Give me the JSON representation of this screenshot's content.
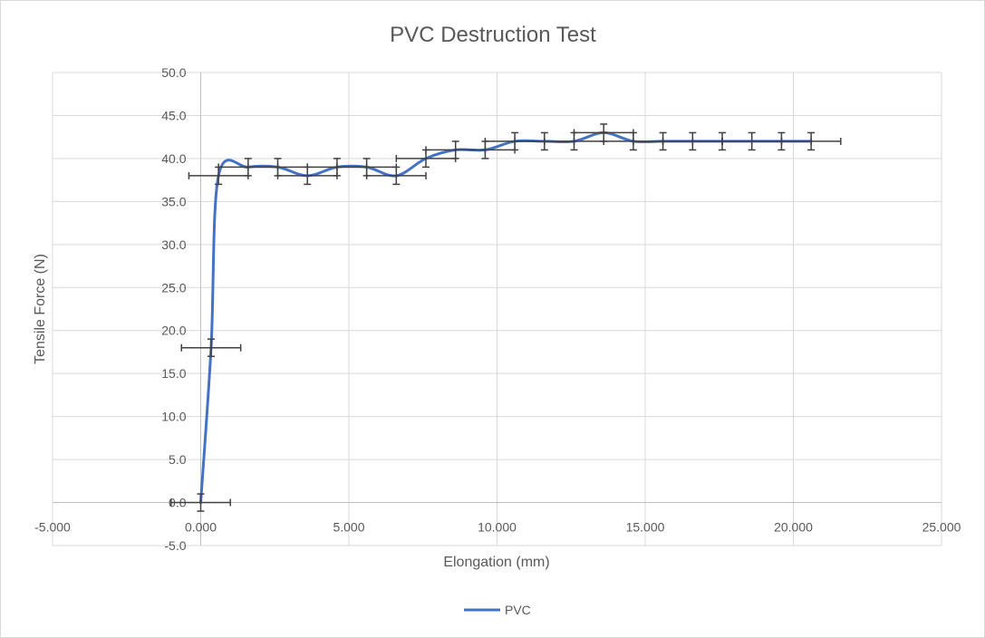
{
  "chart_data": {
    "type": "scatter",
    "title": "PVC Destruction Test",
    "xlabel": "Elongation (mm)",
    "ylabel": "Tensile Force (N)",
    "xlim": [
      -5,
      25
    ],
    "ylim": [
      -5,
      50
    ],
    "x_ticks": [
      -5,
      0,
      5,
      10,
      15,
      20,
      25
    ],
    "x_tick_labels": [
      "-5.000",
      "0.000",
      "5.000",
      "10.000",
      "15.000",
      "20.000",
      "25.000"
    ],
    "y_ticks": [
      -5,
      0,
      5,
      10,
      15,
      20,
      25,
      30,
      35,
      40,
      45,
      50
    ],
    "y_tick_labels": [
      "-5.0",
      "0.0",
      "5.0",
      "10.0",
      "15.0",
      "20.0",
      "25.0",
      "30.0",
      "35.0",
      "40.0",
      "45.0",
      "50.0"
    ],
    "grid": true,
    "legend": "bottom",
    "smooth": true,
    "series": [
      {
        "name": "PVC",
        "color": "#4472c4",
        "points": [
          {
            "x": 0.0,
            "y": 0,
            "xerr": 1,
            "yerr": 1
          },
          {
            "x": 0.35,
            "y": 18,
            "xerr": 1,
            "yerr": 1
          },
          {
            "x": 0.6,
            "y": 38,
            "xerr": 1,
            "yerr": 1
          },
          {
            "x": 1.6,
            "y": 39,
            "xerr": 1,
            "yerr": 1
          },
          {
            "x": 2.6,
            "y": 39,
            "xerr": 1,
            "yerr": 1
          },
          {
            "x": 3.6,
            "y": 38,
            "xerr": 1,
            "yerr": 1
          },
          {
            "x": 4.6,
            "y": 39,
            "xerr": 1,
            "yerr": 1
          },
          {
            "x": 5.6,
            "y": 39,
            "xerr": 1,
            "yerr": 1
          },
          {
            "x": 6.6,
            "y": 38,
            "xerr": 1,
            "yerr": 1
          },
          {
            "x": 7.6,
            "y": 40,
            "xerr": 1,
            "yerr": 1
          },
          {
            "x": 8.6,
            "y": 41,
            "xerr": 1,
            "yerr": 1
          },
          {
            "x": 9.6,
            "y": 41,
            "xerr": 1,
            "yerr": 1
          },
          {
            "x": 10.6,
            "y": 42,
            "xerr": 1,
            "yerr": 1
          },
          {
            "x": 11.6,
            "y": 42,
            "xerr": 1,
            "yerr": 1
          },
          {
            "x": 12.6,
            "y": 42,
            "xerr": 1,
            "yerr": 1
          },
          {
            "x": 13.6,
            "y": 43,
            "xerr": 1,
            "yerr": 1
          },
          {
            "x": 14.6,
            "y": 42,
            "xerr": 1,
            "yerr": 1
          },
          {
            "x": 15.6,
            "y": 42,
            "xerr": 1,
            "yerr": 1
          },
          {
            "x": 16.6,
            "y": 42,
            "xerr": 1,
            "yerr": 1
          },
          {
            "x": 17.6,
            "y": 42,
            "xerr": 1,
            "yerr": 1
          },
          {
            "x": 18.6,
            "y": 42,
            "xerr": 1,
            "yerr": 1
          },
          {
            "x": 19.6,
            "y": 42,
            "xerr": 1,
            "yerr": 1
          },
          {
            "x": 20.6,
            "y": 42,
            "xerr": 1,
            "yerr": 1
          }
        ]
      }
    ]
  }
}
